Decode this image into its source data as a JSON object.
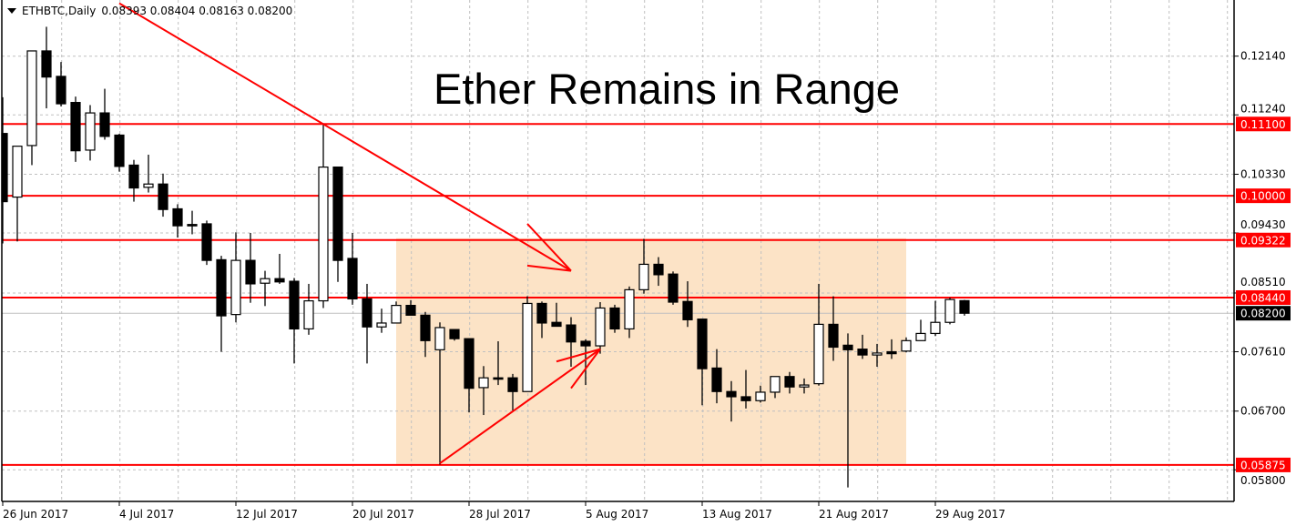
{
  "header": {
    "symbol_timeframe": "ETHBTC,Daily",
    "ohlc_text": "0.08393 0.08404 0.08163 0.08200"
  },
  "chart_data": {
    "type": "candlestick",
    "title": "Ether Remains in Range",
    "symbol": "ETHBTC",
    "timeframe": "Daily",
    "start_date": "2017-06-26",
    "ohlc": [
      [
        0.10955,
        0.1151,
        0.0927,
        0.0991
      ],
      [
        0.0998,
        0.1076,
        0.093,
        0.1076
      ],
      [
        0.1077,
        0.1222,
        0.1047,
        0.1222
      ],
      [
        0.1222,
        0.1259,
        0.1134,
        0.1182
      ],
      [
        0.1183,
        0.1205,
        0.1137,
        0.1141
      ],
      [
        0.1143,
        0.1152,
        0.1052,
        0.1069
      ],
      [
        0.107,
        0.1139,
        0.1054,
        0.1127
      ],
      [
        0.1127,
        0.1164,
        0.1086,
        0.1091
      ],
      [
        0.1093,
        0.1095,
        0.1037,
        0.1045
      ],
      [
        0.1047,
        0.1055,
        0.0991,
        0.1012
      ],
      [
        0.1013,
        0.1063,
        0.1005,
        0.1018
      ],
      [
        0.1018,
        0.1034,
        0.0968,
        0.0979
      ],
      [
        0.098,
        0.0987,
        0.0936,
        0.0954
      ],
      [
        0.0956,
        0.0977,
        0.0941,
        0.0955
      ],
      [
        0.0957,
        0.0962,
        0.0894,
        0.0901
      ],
      [
        0.0902,
        0.0908,
        0.0761,
        0.0816
      ],
      [
        0.0818,
        0.0944,
        0.0806,
        0.0901
      ],
      [
        0.0901,
        0.0943,
        0.0836,
        0.0865
      ],
      [
        0.0866,
        0.0885,
        0.0831,
        0.0873
      ],
      [
        0.0873,
        0.0911,
        0.0865,
        0.0868
      ],
      [
        0.0869,
        0.0874,
        0.0743,
        0.0796
      ],
      [
        0.0796,
        0.0865,
        0.0787,
        0.0839
      ],
      [
        0.0839,
        0.111,
        0.0828,
        0.1044
      ],
      [
        0.1044,
        0.1044,
        0.0868,
        0.0901
      ],
      [
        0.0904,
        0.0943,
        0.0833,
        0.0842
      ],
      [
        0.0842,
        0.0865,
        0.0743,
        0.0799
      ],
      [
        0.0799,
        0.0827,
        0.079,
        0.0805
      ],
      [
        0.0805,
        0.0838,
        0.0805,
        0.0832
      ],
      [
        0.0832,
        0.084,
        0.0817,
        0.0817
      ],
      [
        0.0817,
        0.0822,
        0.0753,
        0.0778
      ],
      [
        0.0764,
        0.0806,
        0.0588,
        0.0798
      ],
      [
        0.0795,
        0.0795,
        0.0778,
        0.0781
      ],
      [
        0.0781,
        0.0781,
        0.0668,
        0.0705
      ],
      [
        0.0706,
        0.0739,
        0.0664,
        0.0721
      ],
      [
        0.0721,
        0.0777,
        0.071,
        0.072
      ],
      [
        0.0721,
        0.0727,
        0.0671,
        0.07
      ],
      [
        0.07,
        0.0846,
        0.07,
        0.0835
      ],
      [
        0.0835,
        0.0838,
        0.0782,
        0.0805
      ],
      [
        0.0806,
        0.0836,
        0.08,
        0.08
      ],
      [
        0.0802,
        0.0814,
        0.0738,
        0.0776
      ],
      [
        0.0777,
        0.078,
        0.071,
        0.077
      ],
      [
        0.077,
        0.0837,
        0.0758,
        0.0828
      ],
      [
        0.0828,
        0.0833,
        0.079,
        0.0796
      ],
      [
        0.0796,
        0.0861,
        0.0782,
        0.0856
      ],
      [
        0.0856,
        0.0934,
        0.085,
        0.0895
      ],
      [
        0.0895,
        0.0906,
        0.0862,
        0.0879
      ],
      [
        0.088,
        0.0884,
        0.0833,
        0.0837
      ],
      [
        0.0838,
        0.0869,
        0.0799,
        0.081
      ],
      [
        0.0811,
        0.0811,
        0.0679,
        0.0735
      ],
      [
        0.0736,
        0.0765,
        0.0682,
        0.07
      ],
      [
        0.07,
        0.0716,
        0.0654,
        0.0692
      ],
      [
        0.0692,
        0.0733,
        0.0674,
        0.0686
      ],
      [
        0.0686,
        0.0709,
        0.0683,
        0.0699
      ],
      [
        0.0699,
        0.0723,
        0.069,
        0.0723
      ],
      [
        0.0723,
        0.073,
        0.0697,
        0.0707
      ],
      [
        0.0707,
        0.072,
        0.0697,
        0.071
      ],
      [
        0.0712,
        0.0865,
        0.0709,
        0.0803
      ],
      [
        0.0803,
        0.0846,
        0.0747,
        0.0768
      ],
      [
        0.0771,
        0.0789,
        0.0553,
        0.0764
      ],
      [
        0.0765,
        0.0787,
        0.075,
        0.0756
      ],
      [
        0.0756,
        0.0773,
        0.0738,
        0.0759
      ],
      [
        0.0761,
        0.078,
        0.075,
        0.0758
      ],
      [
        0.0762,
        0.0783,
        0.076,
        0.0778
      ],
      [
        0.0778,
        0.081,
        0.0778,
        0.0789
      ],
      [
        0.0789,
        0.0839,
        0.0785,
        0.0806
      ],
      [
        0.0806,
        0.0844,
        0.0803,
        0.0841
      ],
      [
        0.08393,
        0.08404,
        0.08163,
        0.082
      ]
    ],
    "x_tick_labels": [
      "26 Jun 2017",
      "4 Jul 2017",
      "12 Jul 2017",
      "20 Jul 2017",
      "28 Jul 2017",
      "5 Aug 2017",
      "13 Aug 2017",
      "21 Aug 2017",
      "29 Aug 2017"
    ],
    "y_tick_labels": [
      "0.12140",
      "0.11240",
      "0.10330",
      "0.09430",
      "0.08510",
      "0.07610",
      "0.06700",
      "0.05800"
    ],
    "y_tick_values": [
      0.1214,
      0.1124,
      0.1033,
      0.0943,
      0.0851,
      0.0761,
      0.067,
      0.058
    ],
    "grid": true,
    "horizontal_levels": [
      {
        "label": "0.11100",
        "value": 0.111
      },
      {
        "label": "0.10000",
        "value": 0.1
      },
      {
        "label": "0.09322",
        "value": 0.09322
      },
      {
        "label": "0.08440",
        "value": 0.0844
      },
      {
        "label": "0.05875",
        "value": 0.05875
      }
    ],
    "current_price": {
      "label": "0.08200",
      "value": 0.082
    },
    "range_zone": {
      "start": "2017-07-23",
      "end": "2017-08-27",
      "top": 0.0935,
      "bottom": 0.0589
    },
    "trend_lines": [
      {
        "from": [
          "2017-07-04",
          0.1295
        ],
        "to": [
          "2017-08-04",
          0.0885
        ]
      },
      {
        "from": [
          "2017-08-01",
          0.0957
        ],
        "to": [
          "2017-08-04",
          0.0885
        ]
      },
      {
        "from": [
          "2017-08-01",
          0.0893
        ],
        "to": [
          "2017-08-04",
          0.0885
        ]
      },
      {
        "from": [
          "2017-07-26",
          0.059
        ],
        "to": [
          "2017-08-06",
          0.0765
        ]
      },
      {
        "from": [
          "2017-08-03",
          0.0746
        ],
        "to": [
          "2017-08-06",
          0.0765
        ]
      },
      {
        "from": [
          "2017-08-04",
          0.0705
        ],
        "to": [
          "2017-08-06",
          0.0765
        ]
      }
    ],
    "colors": {
      "bull_body": "#ffffff",
      "bear_body": "#000000",
      "level_line": "#ff0000",
      "zone": "#fce3c6",
      "grid": "#c0c0c0",
      "current_badge": "#000000",
      "level_badge": "#ff0000"
    }
  }
}
